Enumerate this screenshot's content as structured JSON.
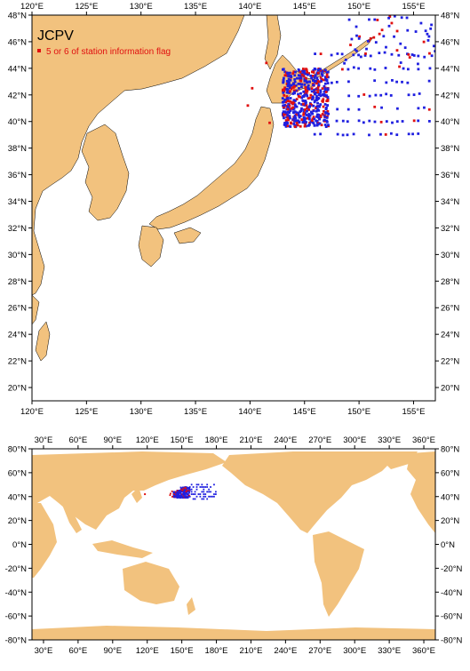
{
  "colors": {
    "land": "#f2c27e",
    "sea": "#ffffff",
    "normal_station": "#1f1fe0",
    "flagged_station": "#e01010",
    "frame": "#000000"
  },
  "top_map": {
    "title": "JCPV",
    "legend_label": "5 or 6 of station information flag",
    "legend_symbol": "red-square",
    "lon_range": [
      120,
      157
    ],
    "lat_range": [
      19,
      48
    ],
    "lon_ticks": [
      "120°E",
      "125°E",
      "130°E",
      "135°E",
      "140°E",
      "145°E",
      "150°E",
      "155°E"
    ],
    "lat_ticks": [
      "20°N",
      "22°N",
      "24°N",
      "26°N",
      "28°N",
      "30°N",
      "32°N",
      "34°N",
      "36°N",
      "38°N",
      "40°N",
      "42°N",
      "44°N",
      "46°N",
      "48°N"
    ]
  },
  "bottom_map": {
    "lon_range": [
      20,
      370
    ],
    "lat_range": [
      -80,
      80
    ],
    "lon_ticks": [
      "30°E",
      "60°E",
      "90°E",
      "120°E",
      "150°E",
      "180°E",
      "210°E",
      "240°E",
      "270°E",
      "300°E",
      "330°E",
      "360°E"
    ],
    "lat_ticks": [
      "80°N",
      "60°N",
      "40°N",
      "20°N",
      "0°N",
      "-20°N",
      "-40°N",
      "-60°N",
      "-80°N"
    ]
  }
}
